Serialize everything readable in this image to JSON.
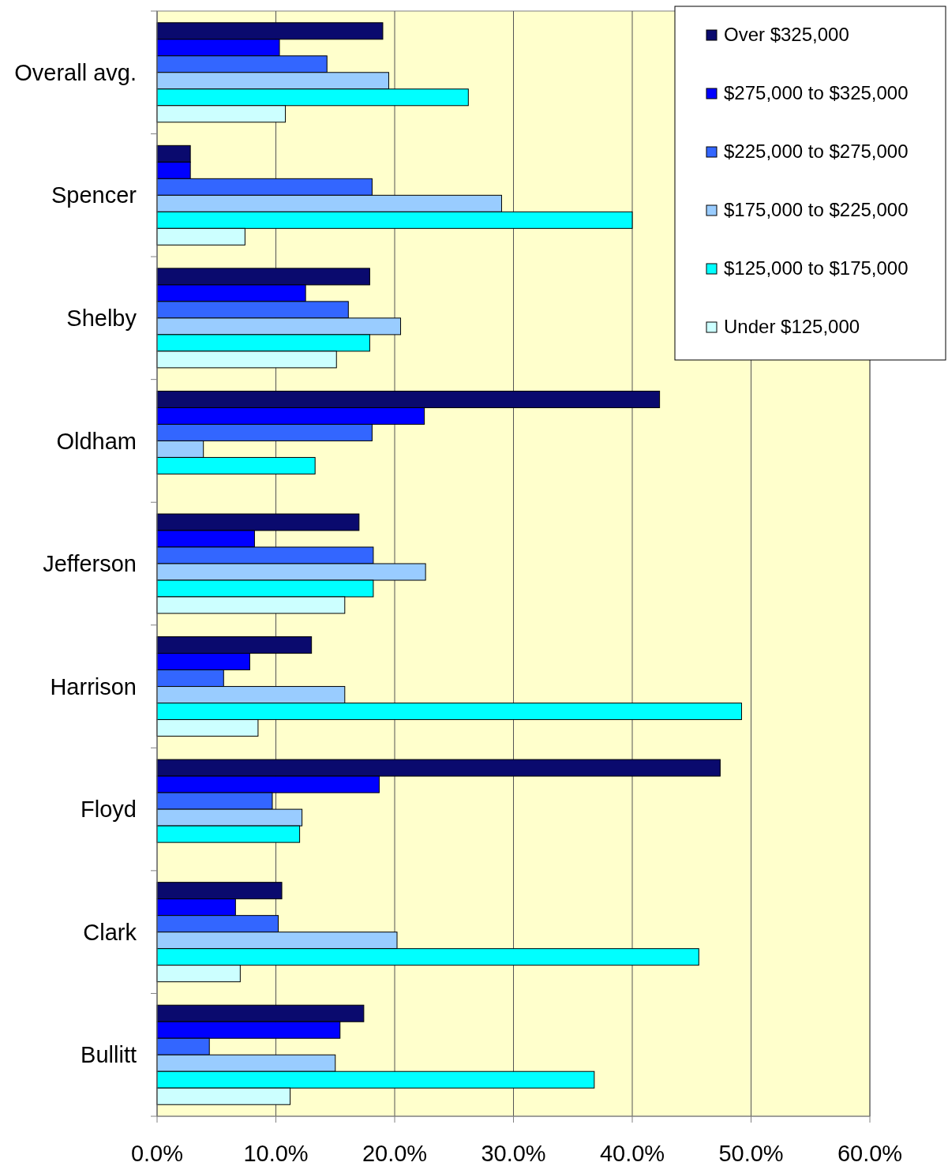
{
  "chart_data": {
    "type": "bar",
    "orientation": "horizontal",
    "categories": [
      "Overall avg.",
      "Spencer",
      "Shelby",
      "Oldham",
      "Jefferson",
      "Harrison",
      "Floyd",
      "Clark",
      "Bullitt"
    ],
    "series": [
      {
        "name": "Over $325,000",
        "color": "#0a0a6e",
        "values": [
          19.0,
          2.8,
          17.9,
          42.3,
          17.0,
          13.0,
          47.4,
          10.5,
          17.4
        ]
      },
      {
        "name": "$275,000 to $325,000",
        "color": "#0000ff",
        "values": [
          10.3,
          2.8,
          12.5,
          22.5,
          8.2,
          7.8,
          18.7,
          6.6,
          15.4
        ]
      },
      {
        "name": "$225,000 to $275,000",
        "color": "#3366ff",
        "values": [
          14.3,
          18.1,
          16.1,
          18.1,
          18.2,
          5.6,
          9.7,
          10.2,
          4.4
        ]
      },
      {
        "name": "$175,000 to $225,000",
        "color": "#99ccff",
        "values": [
          19.5,
          29.0,
          20.5,
          3.9,
          22.6,
          15.8,
          12.2,
          20.2,
          15.0
        ]
      },
      {
        "name": "$125,000 to $175,000",
        "color": "#00ffff",
        "values": [
          26.2,
          40.0,
          17.9,
          13.3,
          18.2,
          49.2,
          12.0,
          45.6,
          36.8
        ]
      },
      {
        "name": "Under $125,000",
        "color": "#ccffff",
        "values": [
          10.8,
          7.4,
          15.1,
          null,
          15.8,
          8.5,
          null,
          7.0,
          11.2
        ]
      }
    ],
    "xlim": [
      0,
      60
    ],
    "xticks": [
      {
        "value": 0,
        "label": "0.0%"
      },
      {
        "value": 10,
        "label": "10.0%"
      },
      {
        "value": 20,
        "label": "20.0%"
      },
      {
        "value": 30,
        "label": "30.0%"
      },
      {
        "value": 40,
        "label": "40.0%"
      },
      {
        "value": 50,
        "label": "50.0%"
      },
      {
        "value": 60,
        "label": "60.0%"
      }
    ],
    "grid": "x",
    "legend": "top right"
  }
}
